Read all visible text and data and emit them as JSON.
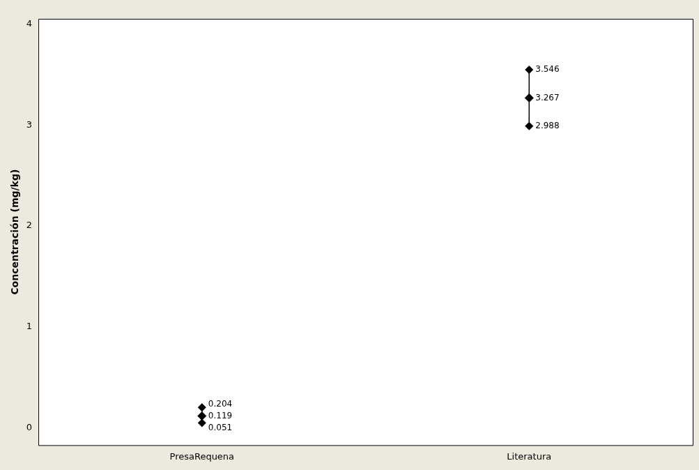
{
  "chart_data": {
    "type": "scatter",
    "ylabel": "Concentración (mg/kg)",
    "categories": [
      "PresaRequena",
      "Literatura"
    ],
    "values": [
      0.119,
      3.267
    ],
    "errors": [
      [
        0.051,
        0.204
      ],
      [
        2.988,
        3.546
      ]
    ],
    "color": "#000000",
    "marker": "diamond",
    "data_labels": true,
    "grid": false,
    "legend": false,
    "ylim": [
      -0.17,
      4.05
    ],
    "yticks": [
      0,
      1,
      2,
      3,
      4
    ],
    "annotations": [
      {
        "text": "0.204",
        "x": "PresaRequena",
        "y": 0.204
      },
      {
        "text": "0.051",
        "x": "PresaRequena",
        "y": 0.051
      },
      {
        "text": "3.546",
        "x": "Literatura",
        "y": 3.546
      },
      {
        "text": "2.988",
        "x": "Literatura",
        "y": 2.988
      }
    ]
  }
}
